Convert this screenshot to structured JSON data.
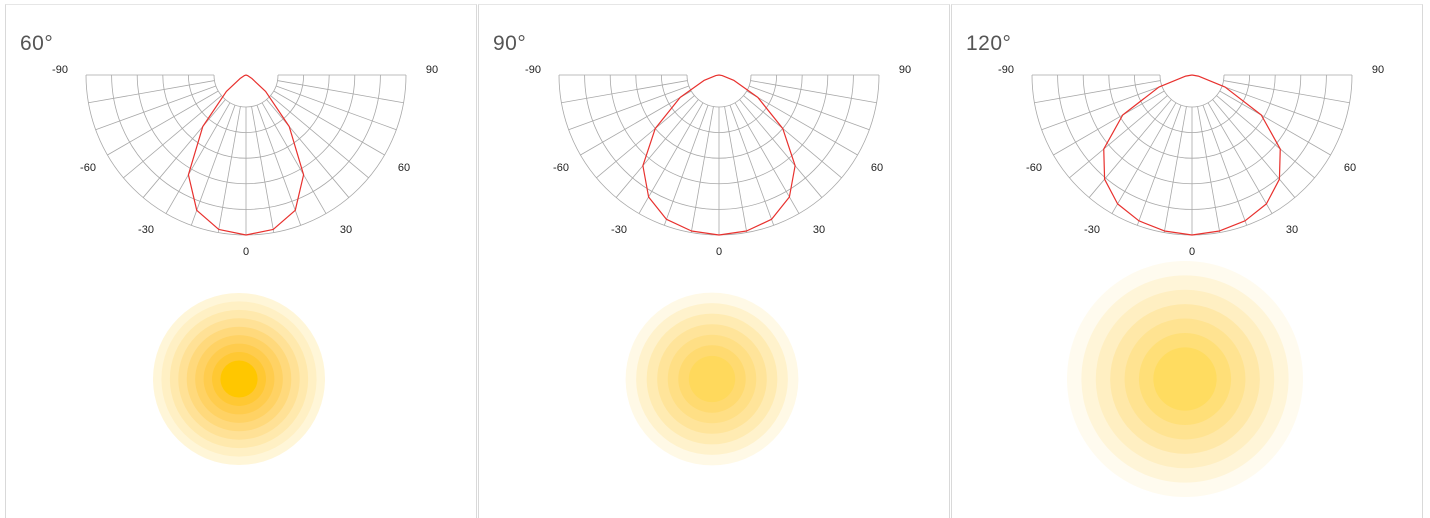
{
  "chart_data": [
    {
      "type": "polar",
      "title": "60°",
      "beam_angle_deg": 60,
      "angle_ticks": [
        "-90",
        "-60",
        "-30",
        "0",
        "30",
        "60",
        "90"
      ],
      "series": [
        {
          "values": [
            {
              "angle": 0,
              "r": 1.0
            },
            {
              "angle": 10,
              "r": 0.98
            },
            {
              "angle": 20,
              "r": 0.9
            },
            {
              "angle": 30,
              "r": 0.72
            },
            {
              "angle": 40,
              "r": 0.42
            },
            {
              "angle": 50,
              "r": 0.16
            },
            {
              "angle": 60,
              "r": 0.04
            },
            {
              "angle": 70,
              "r": 0.01
            },
            {
              "angle": 80,
              "r": 0.0
            },
            {
              "angle": 90,
              "r": 0.0
            }
          ]
        }
      ],
      "spot_colors": [
        "#fff6d8",
        "#fff0c4",
        "#ffe9ad",
        "#ffe196",
        "#ffd97c",
        "#ffd264",
        "#ffcc4d",
        "#ffc833",
        "#ffc700"
      ],
      "line_color": "#e8312e",
      "grid_color": "#a8a8a8"
    },
    {
      "type": "polar",
      "title": "90°",
      "beam_angle_deg": 90,
      "angle_ticks": [
        "-90",
        "-60",
        "-30",
        "0",
        "30",
        "60",
        "90"
      ],
      "series": [
        {
          "values": [
            {
              "angle": 0,
              "r": 1.0
            },
            {
              "angle": 10,
              "r": 0.99
            },
            {
              "angle": 20,
              "r": 0.96
            },
            {
              "angle": 30,
              "r": 0.88
            },
            {
              "angle": 40,
              "r": 0.74
            },
            {
              "angle": 50,
              "r": 0.52
            },
            {
              "angle": 60,
              "r": 0.28
            },
            {
              "angle": 70,
              "r": 0.1
            },
            {
              "angle": 80,
              "r": 0.02
            },
            {
              "angle": 90,
              "r": 0.0
            }
          ]
        }
      ],
      "spot_colors": [
        "#fff9e6",
        "#fff2cc",
        "#ffebb2",
        "#ffe49a",
        "#ffdf85",
        "#ffda70",
        "#ffd95c"
      ],
      "line_color": "#e8312e",
      "grid_color": "#a8a8a8"
    },
    {
      "type": "polar",
      "title": "120°",
      "beam_angle_deg": 120,
      "angle_ticks": [
        "-90",
        "-60",
        "-30",
        "0",
        "30",
        "60",
        "90"
      ],
      "series": [
        {
          "values": [
            {
              "angle": 0,
              "r": 1.0
            },
            {
              "angle": 10,
              "r": 0.99
            },
            {
              "angle": 20,
              "r": 0.97
            },
            {
              "angle": 30,
              "r": 0.93
            },
            {
              "angle": 40,
              "r": 0.85
            },
            {
              "angle": 50,
              "r": 0.72
            },
            {
              "angle": 60,
              "r": 0.5
            },
            {
              "angle": 70,
              "r": 0.22
            },
            {
              "angle": 80,
              "r": 0.04
            },
            {
              "angle": 90,
              "r": 0.0
            }
          ]
        }
      ],
      "spot_colors": [
        "#fffbef",
        "#fff5d8",
        "#ffefc2",
        "#ffe8a8",
        "#ffe391",
        "#ffdf78",
        "#ffdc60"
      ],
      "line_color": "#e8312e",
      "grid_color": "#a8a8a8"
    }
  ]
}
